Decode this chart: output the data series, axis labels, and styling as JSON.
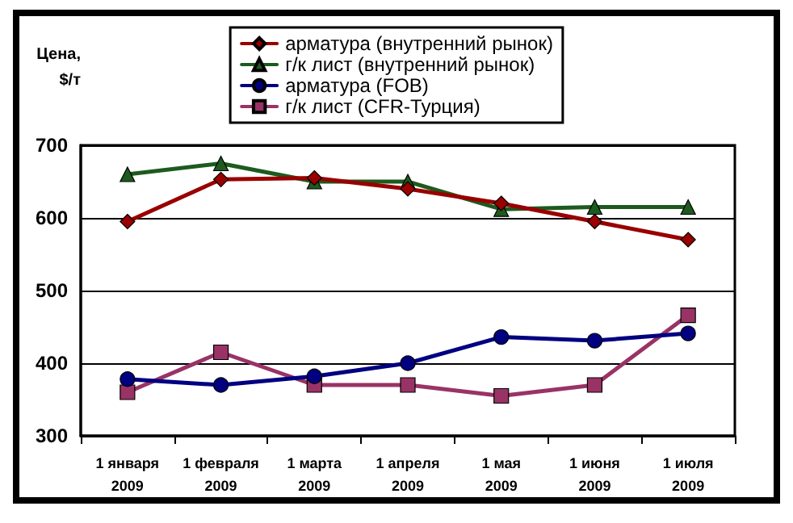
{
  "chart_data": {
    "type": "line",
    "ylabel": "Цена,\n$/т",
    "categories": [
      "1 января\n2009",
      "1 февраля\n2009",
      "1 марта\n2009",
      "1 апреля\n2009",
      "1 мая\n2009",
      "1 июня\n2009",
      "1 июля\n2009"
    ],
    "series": [
      {
        "name": "арматура (внутренний рынок)",
        "color": "#990000",
        "marker": "diamond",
        "values": [
          595,
          653,
          655,
          640,
          620,
          595,
          570
        ]
      },
      {
        "name": "г/к лист (внутренний рынок)",
        "color": "#1e5a1e",
        "marker": "triangle",
        "values": [
          660,
          675,
          650,
          650,
          612,
          615,
          615
        ]
      },
      {
        "name": "арматура (FOB)",
        "color": "#000080",
        "marker": "circle",
        "values": [
          378,
          370,
          382,
          400,
          436,
          431,
          441
        ]
      },
      {
        "name": "г/к лист (CFR-Турция)",
        "color": "#993366",
        "marker": "square",
        "values": [
          360,
          415,
          370,
          370,
          355,
          370,
          466
        ]
      }
    ],
    "ylim": [
      300,
      700
    ],
    "yticks": [
      300,
      400,
      500,
      600,
      700
    ],
    "grid": "y",
    "legend": "top"
  }
}
